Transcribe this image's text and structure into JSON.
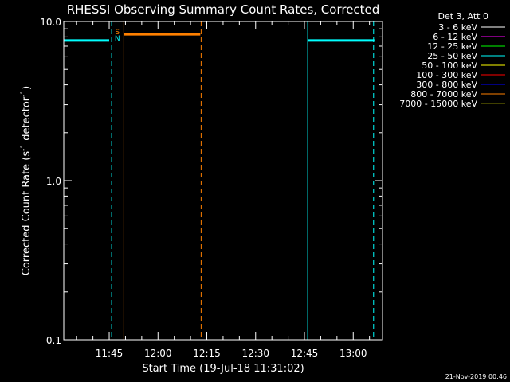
{
  "chart_data": {
    "type": "line",
    "title": "RHESSI Observing Summary Count Rates, Corrected",
    "xlabel": "Start Time (19-Jul-18 11:31:02)",
    "ylabel": "Corrected Count Rate (s",
    "ylabel_sup1": "-1",
    "ylabel_mid": " detector",
    "ylabel_sup2": "-1",
    "ylabel_end": ")",
    "y_scale": "log",
    "ylim": [
      0.1,
      10.0
    ],
    "xlim": [
      "11:31:02",
      "13:09:00"
    ],
    "y_ticks": [
      {
        "value": 0.1,
        "label": "0.1"
      },
      {
        "value": 1.0,
        "label": "1.0"
      },
      {
        "value": 10.0,
        "label": "10.0"
      }
    ],
    "x_ticks": [
      {
        "value": "11:45",
        "label": "11:45"
      },
      {
        "value": "12:00",
        "label": "12:00"
      },
      {
        "value": "12:15",
        "label": "12:15"
      },
      {
        "value": "12:30",
        "label": "12:30"
      },
      {
        "value": "12:45",
        "label": "12:45"
      },
      {
        "value": "13:00",
        "label": "13:00"
      }
    ],
    "grid": false,
    "legend_position": "right",
    "legend_header": "Det 3, Att 0",
    "legend": [
      {
        "label": "3 - 6 keV",
        "color": "#ffffff"
      },
      {
        "label": "6 - 12 keV",
        "color": "#ff00ff"
      },
      {
        "label": "12 - 25 keV",
        "color": "#00ff00"
      },
      {
        "label": "25 - 50 keV",
        "color": "#00ffff"
      },
      {
        "label": "50 - 100 keV",
        "color": "#ffff00"
      },
      {
        "label": "100 - 300 keV",
        "color": "#ff0000"
      },
      {
        "label": "300 - 800 keV",
        "color": "#0000ff"
      },
      {
        "label": "800 - 7000 keV",
        "color": "#ff8000"
      },
      {
        "label": "7000 - 15000 keV",
        "color": "#808000"
      }
    ],
    "segments": [
      {
        "x": [
          "11:31:02",
          "11:45:00"
        ],
        "y": 7.6,
        "color": "#00ffff"
      },
      {
        "x": [
          "11:49:30",
          "12:13:00"
        ],
        "y": 8.3,
        "color": "#ff8000"
      },
      {
        "x": [
          "12:46:00",
          "13:06:30"
        ],
        "y": 7.6,
        "color": "#00ffff"
      }
    ],
    "vlines": [
      {
        "x": "11:31:02",
        "color": "#00ffff",
        "style": "solid"
      },
      {
        "x": "11:45:45",
        "color": "#00ffff",
        "style": "dashed"
      },
      {
        "x": "11:49:30",
        "color": "#ff8000",
        "style": "solid"
      },
      {
        "x": "12:13:15",
        "color": "#ff8000",
        "style": "dashed"
      },
      {
        "x": "12:46:00",
        "color": "#00ffff",
        "style": "solid"
      },
      {
        "x": "13:06:15",
        "color": "#00ffff",
        "style": "dashed"
      }
    ],
    "annotations": [
      {
        "text": "S",
        "x": "11:47:30",
        "color": "#ff8000"
      },
      {
        "text": "N",
        "x": "11:47:30",
        "color": "#00ffff"
      }
    ]
  },
  "footer_date": "21-Nov-2019 00:46"
}
